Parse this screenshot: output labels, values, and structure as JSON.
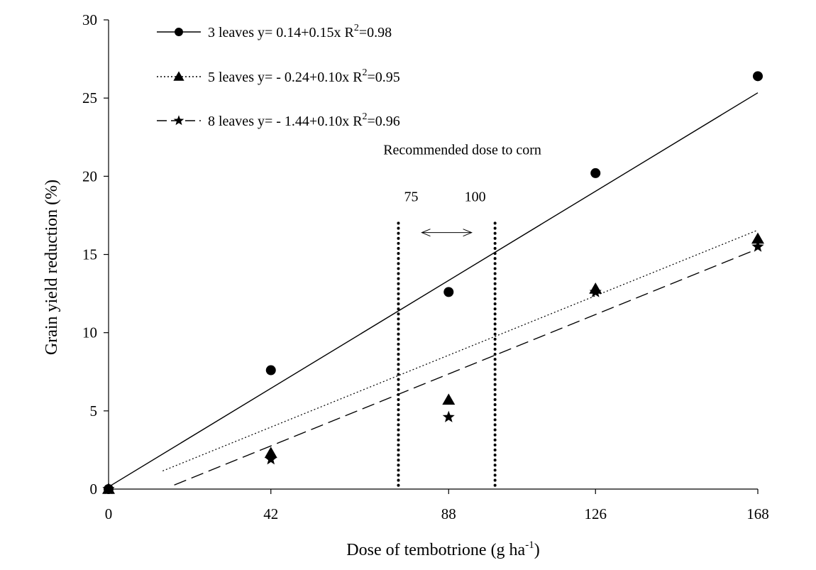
{
  "chart_data": {
    "type": "scatter",
    "xlabel": "Dose of tembotrione (g ha",
    "xlabel_sup": "-1",
    "xlabel_suffix": ")",
    "ylabel": "Grain yield reduction (%)",
    "xlim": [
      0,
      168
    ],
    "ylim": [
      0,
      30
    ],
    "x_ticks": [
      0,
      42,
      88,
      126,
      168
    ],
    "x_tick_labels": [
      "0",
      "42",
      "88",
      "126",
      "168"
    ],
    "y_ticks": [
      0,
      5,
      10,
      15,
      20,
      25,
      30
    ],
    "y_tick_labels": [
      "0",
      "5",
      "10",
      "15",
      "20",
      "25",
      "30"
    ],
    "grid": false,
    "legend_position": "top-left",
    "series": [
      {
        "name": "3 leaves",
        "marker": "circle",
        "line_style": "solid",
        "x": [
          0,
          42,
          88,
          126,
          168
        ],
        "y": [
          0,
          7.6,
          12.6,
          20.2,
          26.4
        ],
        "fit": {
          "intercept": 0.14,
          "slope": 0.15,
          "x_start": 0,
          "x_end": 168
        },
        "legend_equation": "y= 0.14+0.15x R",
        "legend_r2": "=0.98"
      },
      {
        "name": "5 leaves",
        "marker": "triangle",
        "line_style": "dotted",
        "x": [
          0,
          42,
          88,
          126,
          168
        ],
        "y": [
          0,
          2.3,
          5.7,
          12.8,
          16.0
        ],
        "fit": {
          "intercept": -0.24,
          "slope": 0.1,
          "x_start": 14,
          "x_end": 168
        },
        "legend_equation": "y=  - 0.24+0.10x R",
        "legend_r2": "=0.95"
      },
      {
        "name": "8 leaves",
        "marker": "star",
        "line_style": "dashed",
        "x": [
          0,
          42,
          88,
          126,
          168
        ],
        "y": [
          0,
          1.9,
          4.6,
          12.6,
          15.5
        ],
        "fit": {
          "intercept": -1.44,
          "slope": 0.1,
          "x_start": 17,
          "x_end": 168
        },
        "legend_equation": "y=  - 1.44+0.10x R",
        "legend_r2": "=0.96"
      }
    ],
    "annotations": {
      "recommended_label": "Recommended dose to corn",
      "recommended_range": [
        75,
        100
      ],
      "low_label": "75",
      "high_label": "100",
      "line_y_top": 17
    }
  }
}
